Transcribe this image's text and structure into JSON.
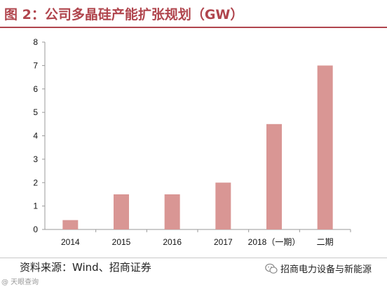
{
  "header": {
    "title": "图 2：公司多晶硅产能扩张规划（GW）"
  },
  "footer": {
    "source": "资料来源：Wind、招商证券",
    "watermark": "招商电力设备与新能源",
    "corner_mark": "@ 天眼查询"
  },
  "colors": {
    "accent": "#b0454d",
    "bar": "#d99694",
    "axis": "#9a9a9a"
  },
  "chart_data": {
    "type": "bar",
    "title": "",
    "xlabel": "",
    "ylabel": "",
    "categories": [
      "2014",
      "2015",
      "2016",
      "2017",
      "2018（一期）",
      "二期"
    ],
    "values": [
      0.4,
      1.5,
      1.5,
      2.0,
      4.5,
      7.0
    ],
    "ylim": [
      0,
      8
    ],
    "yticks": [
      "0",
      "1",
      "2",
      "3",
      "4",
      "5",
      "6",
      "7",
      "8"
    ],
    "grid": false,
    "legend": "none"
  }
}
